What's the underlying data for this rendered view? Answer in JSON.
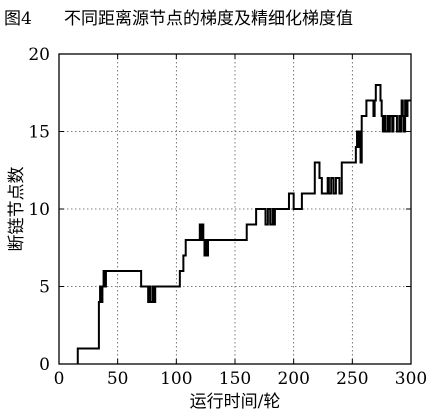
{
  "figure": {
    "label": "图4",
    "caption": "不同距离源节点的梯度及精细化梯度值"
  },
  "chart_data": {
    "type": "line",
    "title": "",
    "xlabel": "运行时间/轮",
    "ylabel": "断链节点数",
    "xlim": [
      0,
      300
    ],
    "ylim": [
      0,
      20
    ],
    "xticks": [
      0,
      50,
      100,
      150,
      200,
      250,
      300
    ],
    "yticks": [
      0,
      5,
      10,
      15,
      20
    ],
    "grid": true,
    "line_color": "#000000",
    "series": [
      {
        "name": "",
        "points": [
          [
            16,
            0
          ],
          [
            16,
            1
          ],
          [
            34,
            1
          ],
          [
            34,
            4
          ],
          [
            35,
            4
          ],
          [
            35,
            5
          ],
          [
            36,
            5
          ],
          [
            36,
            4
          ],
          [
            37,
            4
          ],
          [
            37,
            5
          ],
          [
            38,
            5
          ],
          [
            38,
            6
          ],
          [
            39,
            6
          ],
          [
            39,
            5
          ],
          [
            40,
            5
          ],
          [
            40,
            6
          ],
          [
            70,
            6
          ],
          [
            70,
            5
          ],
          [
            76,
            5
          ],
          [
            76,
            4
          ],
          [
            77,
            4
          ],
          [
            77,
            5
          ],
          [
            78,
            5
          ],
          [
            78,
            4
          ],
          [
            80,
            4
          ],
          [
            80,
            5
          ],
          [
            81,
            5
          ],
          [
            81,
            4
          ],
          [
            82,
            4
          ],
          [
            82,
            5
          ],
          [
            103,
            5
          ],
          [
            103,
            6
          ],
          [
            106,
            6
          ],
          [
            106,
            7
          ],
          [
            108,
            7
          ],
          [
            108,
            8
          ],
          [
            120,
            8
          ],
          [
            120,
            9
          ],
          [
            121,
            9
          ],
          [
            121,
            8
          ],
          [
            122,
            8
          ],
          [
            122,
            9
          ],
          [
            123,
            9
          ],
          [
            123,
            8
          ],
          [
            124,
            8
          ],
          [
            124,
            7
          ],
          [
            125,
            7
          ],
          [
            125,
            8
          ],
          [
            126,
            8
          ],
          [
            126,
            7
          ],
          [
            127,
            7
          ],
          [
            127,
            8
          ],
          [
            160,
            8
          ],
          [
            160,
            9
          ],
          [
            168,
            9
          ],
          [
            168,
            10
          ],
          [
            176,
            10
          ],
          [
            176,
            9
          ],
          [
            178,
            9
          ],
          [
            178,
            10
          ],
          [
            180,
            10
          ],
          [
            180,
            9
          ],
          [
            182,
            9
          ],
          [
            182,
            10
          ],
          [
            183,
            10
          ],
          [
            183,
            9
          ],
          [
            184,
            9
          ],
          [
            184,
            10
          ],
          [
            196,
            10
          ],
          [
            196,
            11
          ],
          [
            200,
            11
          ],
          [
            200,
            10
          ],
          [
            207,
            10
          ],
          [
            207,
            11
          ],
          [
            218,
            11
          ],
          [
            218,
            13
          ],
          [
            222,
            13
          ],
          [
            222,
            12
          ],
          [
            224,
            12
          ],
          [
            224,
            11
          ],
          [
            229,
            11
          ],
          [
            229,
            12
          ],
          [
            230,
            12
          ],
          [
            230,
            11
          ],
          [
            232,
            11
          ],
          [
            232,
            12
          ],
          [
            234,
            12
          ],
          [
            234,
            11
          ],
          [
            236,
            11
          ],
          [
            236,
            12
          ],
          [
            239,
            12
          ],
          [
            239,
            11
          ],
          [
            241,
            11
          ],
          [
            241,
            13
          ],
          [
            253,
            13
          ],
          [
            253,
            14
          ],
          [
            254,
            14
          ],
          [
            254,
            15
          ],
          [
            255,
            15
          ],
          [
            255,
            14
          ],
          [
            256,
            14
          ],
          [
            256,
            15
          ],
          [
            257,
            15
          ],
          [
            257,
            13
          ],
          [
            258,
            13
          ],
          [
            258,
            16
          ],
          [
            262,
            16
          ],
          [
            262,
            17
          ],
          [
            268,
            17
          ],
          [
            268,
            16
          ],
          [
            269,
            16
          ],
          [
            269,
            17
          ],
          [
            270,
            17
          ],
          [
            270,
            18
          ],
          [
            274,
            18
          ],
          [
            274,
            17
          ],
          [
            275,
            17
          ],
          [
            275,
            16
          ],
          [
            276,
            16
          ],
          [
            276,
            15
          ],
          [
            277,
            15
          ],
          [
            277,
            16
          ],
          [
            278,
            16
          ],
          [
            278,
            15
          ],
          [
            280,
            15
          ],
          [
            280,
            16
          ],
          [
            281,
            16
          ],
          [
            281,
            15
          ],
          [
            282,
            15
          ],
          [
            282,
            16
          ],
          [
            284,
            16
          ],
          [
            284,
            15
          ],
          [
            285,
            15
          ],
          [
            285,
            16
          ],
          [
            288,
            16
          ],
          [
            288,
            15
          ],
          [
            290,
            15
          ],
          [
            290,
            16
          ],
          [
            291,
            16
          ],
          [
            291,
            15
          ],
          [
            292,
            15
          ],
          [
            292,
            17
          ],
          [
            293,
            17
          ],
          [
            293,
            16
          ],
          [
            294,
            16
          ],
          [
            294,
            15
          ],
          [
            295,
            15
          ],
          [
            295,
            17
          ],
          [
            296,
            17
          ],
          [
            296,
            16
          ],
          [
            297,
            16
          ],
          [
            297,
            17
          ],
          [
            300,
            17
          ]
        ]
      }
    ]
  }
}
